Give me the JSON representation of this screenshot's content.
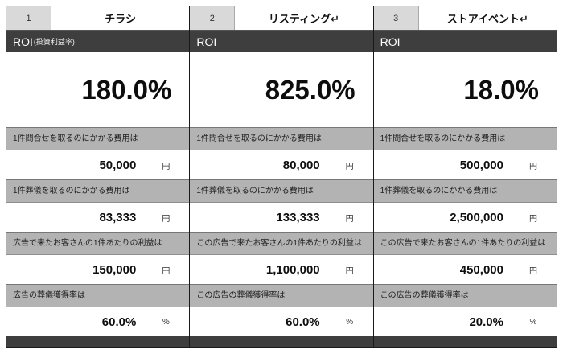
{
  "colors": {
    "dark_bar": "#3e3e3e",
    "header_number_bg": "#d9d9d9",
    "section_label_bg": "#b3b3b3",
    "border": "#1a1a1a"
  },
  "columns": [
    {
      "index": "1",
      "title": "チラシ",
      "roi_label": "ROI",
      "roi_sub": "(投資利益率)",
      "roi_value": "180.0%",
      "sections": [
        {
          "label": "1件問合せを取るのにかかる費用は",
          "value": "50,000",
          "unit": "円"
        },
        {
          "label": "1件葬儀を取るのにかかる費用は",
          "value": "83,333",
          "unit": "円"
        },
        {
          "label": "広告で来たお客さんの1件あたりの利益は",
          "value": "150,000",
          "unit": "円"
        },
        {
          "label": "広告の葬儀獲得率は",
          "value": "60.0%",
          "unit": "%"
        }
      ]
    },
    {
      "index": "2",
      "title": "リスティング↵",
      "roi_label": "ROI",
      "roi_sub": "",
      "roi_value": "825.0%",
      "sections": [
        {
          "label": "1件問合せを取るのにかかる費用は",
          "value": "80,000",
          "unit": "円"
        },
        {
          "label": "1件葬儀を取るのにかかる費用は",
          "value": "133,333",
          "unit": "円"
        },
        {
          "label": "この広告で来たお客さんの1件あたりの利益は",
          "value": "1,100,000",
          "unit": "円"
        },
        {
          "label": "この広告の葬儀獲得率は",
          "value": "60.0%",
          "unit": "%"
        }
      ]
    },
    {
      "index": "3",
      "title": "ストアイベント↵",
      "roi_label": "ROI",
      "roi_sub": "",
      "roi_value": "18.0%",
      "sections": [
        {
          "label": "1件問合せを取るのにかかる費用は",
          "value": "500,000",
          "unit": "円"
        },
        {
          "label": "1件葬儀を取るのにかかる費用は",
          "value": "2,500,000",
          "unit": "円"
        },
        {
          "label": "この広告で来たお客さんの1件あたりの利益は",
          "value": "450,000",
          "unit": "円"
        },
        {
          "label": "この広告の葬儀獲得率は",
          "value": "20.0%",
          "unit": "%"
        }
      ]
    }
  ]
}
